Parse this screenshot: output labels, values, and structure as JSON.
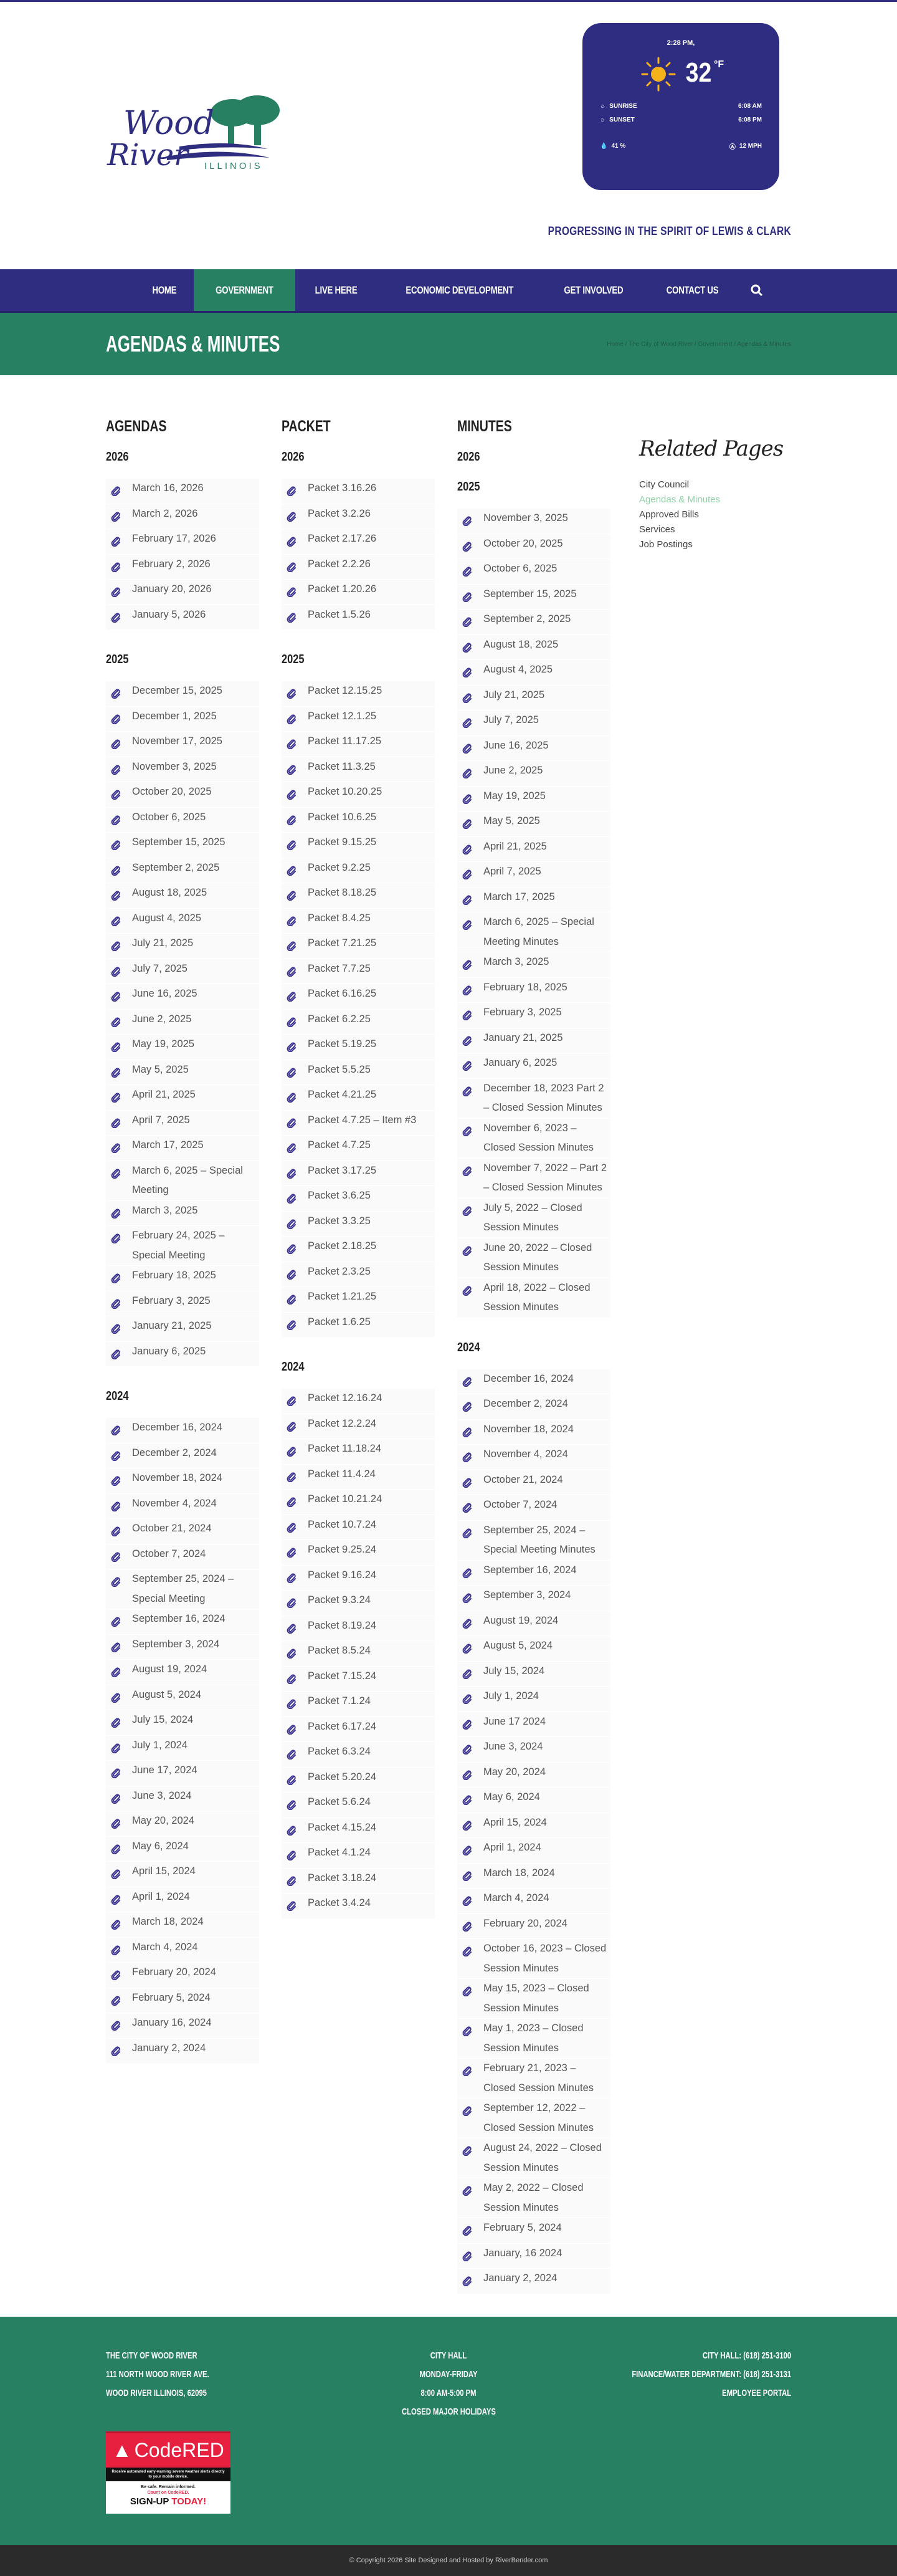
{
  "colors": {
    "navy": "#2e2d80",
    "green": "#288062",
    "active_link": "#8fd0a6",
    "clip_icon": "#3b3391"
  },
  "logo": {
    "line1": "Wood",
    "line2": "River",
    "line3": "ILLINOIS"
  },
  "weather": {
    "time": "2:28 PM,",
    "temp": "32",
    "unit": "°F",
    "icon": "sun-icon",
    "sunrise_label": "SUNRISE",
    "sunrise": "6:08 AM",
    "sunset_label": "SUNSET",
    "sunset": "6:08 PM",
    "humidity": "41 %",
    "wind": "12 MPH"
  },
  "tagline": "PROGRESSING IN THE SPIRIT OF LEWIS & CLARK",
  "nav": {
    "items": [
      {
        "label": "HOME"
      },
      {
        "label": "GOVERNMENT",
        "active": true
      },
      {
        "label": "LIVE HERE"
      },
      {
        "label": "ECONOMIC DEVELOPMENT"
      },
      {
        "label": "GET INVOLVED"
      },
      {
        "label": "CONTACT US"
      }
    ],
    "search_icon": "search-icon"
  },
  "page": {
    "title": "AGENDAS & MINUTES",
    "breadcrumb": "Home / The City of Wood River / Government / Agendas & Minutes"
  },
  "columns": [
    {
      "title": "AGENDAS",
      "years": [
        {
          "year": "2026",
          "items": [
            "March 16, 2026",
            "March 2, 2026",
            "February 17, 2026",
            "February 2, 2026",
            "January 20, 2026",
            "January 5, 2026"
          ]
        },
        {
          "year": "2025",
          "items": [
            "December 15, 2025",
            "December 1, 2025",
            "November 17, 2025",
            "November 3, 2025",
            "October 20, 2025",
            "October 6, 2025",
            "September 15, 2025",
            "September 2, 2025",
            "August 18, 2025",
            "August 4, 2025",
            "July 21, 2025",
            "July 7, 2025",
            "June 16, 2025",
            "June 2, 2025",
            "May 19, 2025",
            "May 5, 2025",
            "April 21, 2025",
            "April 7, 2025",
            "March 17, 2025",
            "March 6, 2025 – Special Meeting",
            "March 3, 2025",
            "February 24, 2025 – Special Meeting",
            "February 18, 2025",
            "February 3, 2025",
            "January 21, 2025",
            "January 6, 2025"
          ]
        },
        {
          "year": "2024",
          "items": [
            "December 16, 2024",
            "December 2, 2024",
            "November 18, 2024",
            "November 4, 2024",
            "October 21, 2024",
            "October 7, 2024",
            "September 25, 2024 – Special Meeting",
            "September 16, 2024",
            "September 3, 2024",
            "August 19, 2024",
            "August 5, 2024",
            "July 15, 2024",
            "July 1, 2024",
            "June 17, 2024",
            "June 3, 2024",
            "May 20, 2024",
            "May 6, 2024",
            "April 15, 2024",
            "April 1, 2024",
            "March 18, 2024",
            "March 4, 2024",
            "February 20, 2024",
            "February 5, 2024",
            "January 16, 2024",
            "January 2, 2024"
          ]
        }
      ]
    },
    {
      "title": "PACKET",
      "years": [
        {
          "year": "2026",
          "items": [
            "Packet 3.16.26",
            "Packet 3.2.26",
            "Packet 2.17.26",
            "Packet 2.2.26",
            "Packet 1.20.26",
            "Packet 1.5.26"
          ]
        },
        {
          "year": "2025",
          "items": [
            "Packet 12.15.25",
            "Packet 12.1.25",
            "Packet 11.17.25",
            "Packet 11.3.25",
            "Packet 10.20.25",
            "Packet 10.6.25",
            "Packet 9.15.25",
            "Packet 9.2.25",
            "Packet 8.18.25",
            "Packet 8.4.25",
            "Packet 7.21.25",
            "Packet 7.7.25",
            "Packet 6.16.25",
            "Packet 6.2.25",
            "Packet 5.19.25",
            "Packet 5.5.25",
            "Packet 4.21.25",
            "Packet 4.7.25 – Item #3",
            "Packet 4.7.25",
            "Packet 3.17.25",
            "Packet 3.6.25",
            "Packet 3.3.25",
            "Packet 2.18.25",
            "Packet 2.3.25",
            "Packet 1.21.25",
            "Packet 1.6.25"
          ]
        },
        {
          "year": "2024",
          "items": [
            "Packet 12.16.24",
            "Packet 12.2.24",
            "Packet 11.18.24",
            "Packet 11.4.24",
            "Packet 10.21.24",
            "Packet 10.7.24",
            "Packet 9.25.24",
            "Packet 9.16.24",
            "Packet 9.3.24",
            "Packet 8.19.24",
            "Packet 8.5.24",
            "Packet 7.15.24",
            "Packet 7.1.24",
            "Packet 6.17.24",
            "Packet 6.3.24",
            "Packet 5.20.24",
            "Packet 5.6.24",
            "Packet 4.15.24",
            "Packet 4.1.24",
            "Packet 3.18.24",
            "Packet 3.4.24"
          ]
        }
      ]
    },
    {
      "title": "MINUTES",
      "years": [
        {
          "year": "2026",
          "items": []
        },
        {
          "year": "2025",
          "items": [
            "November 3, 2025",
            "October 20, 2025",
            "October 6, 2025",
            "September 15, 2025",
            "September 2, 2025",
            "August 18, 2025",
            "August 4, 2025",
            "July 21, 2025",
            "July 7, 2025",
            "June 16, 2025",
            "June 2, 2025",
            "May 19, 2025",
            "May 5, 2025",
            "April 21, 2025",
            "April 7, 2025",
            "March 17, 2025",
            "March 6, 2025 – Special Meeting Minutes",
            "March 3, 2025",
            "February 18, 2025",
            "February 3, 2025",
            "January 21, 2025",
            "January 6, 2025",
            "December 18, 2023 Part 2 – Closed Session Minutes",
            "November 6, 2023 – Closed Session Minutes",
            "November 7, 2022 – Part 2 – Closed Session Minutes",
            "July 5, 2022 – Closed Session Minutes",
            "June 20, 2022 – Closed Session Minutes",
            "April 18, 2022 – Closed Session Minutes"
          ]
        },
        {
          "year": "2024",
          "items": [
            "December 16, 2024",
            "December 2, 2024",
            "November 18, 2024",
            "November 4, 2024",
            "October 21, 2024",
            "October 7, 2024",
            "September 25, 2024 – Special Meeting Minutes",
            "September 16, 2024",
            "September 3, 2024",
            "August 19, 2024",
            "August 5, 2024",
            "July 15, 2024",
            "July 1, 2024",
            "June 17 2024",
            "June 3, 2024",
            "May 20, 2024",
            "May 6, 2024",
            "April 15, 2024",
            "April 1, 2024",
            "March 18, 2024",
            "March 4, 2024",
            "February 20, 2024",
            "October 16, 2023 – Closed Session Minutes",
            "May 15, 2023 – Closed Session Minutes",
            "May 1, 2023 – Closed Session Minutes",
            "February 21, 2023 – Closed Session Minutes",
            "September 12, 2022 – Closed Session Minutes",
            "August 24, 2022 – Closed Session Minutes",
            "May 2, 2022 – Closed Session Minutes",
            "February 5, 2024",
            "January, 16 2024",
            "January 2, 2024"
          ]
        }
      ]
    }
  ],
  "related": {
    "title": "Related Pages",
    "items": [
      {
        "label": "City Council"
      },
      {
        "label": "Agendas & Minutes",
        "active": true
      },
      {
        "label": "Approved Bills"
      },
      {
        "label": "Services"
      },
      {
        "label": "Job Postings"
      }
    ]
  },
  "footer": {
    "address": [
      "THE CITY OF WOOD RIVER",
      "111 NORTH WOOD RIVER AVE.",
      "WOOD RIVER ILLINOIS, 62095"
    ],
    "hours": [
      "CITY HALL",
      "MONDAY-FRIDAY",
      "8:00 AM-5:00 PM",
      "CLOSED MAJOR HOLIDAYS"
    ],
    "contact": [
      "CITY HALL: (618) 251-3100",
      "FINANCE/WATER DEPARTMENT: (618) 251-3131",
      "EMPLOYEE PORTAL"
    ],
    "codered": {
      "brand": "CodeRED",
      "blurb": "Receive automated early-warning severe weather alerts directly to your mobile device.",
      "line1": "Be safe. Remain informed.",
      "line2": "Count on CodeRED.",
      "cta1": "SIGN-UP",
      "cta2": "TODAY!"
    },
    "copyright": "© Copyright 2026 Site Designed and Hosted by RiverBender.com"
  }
}
